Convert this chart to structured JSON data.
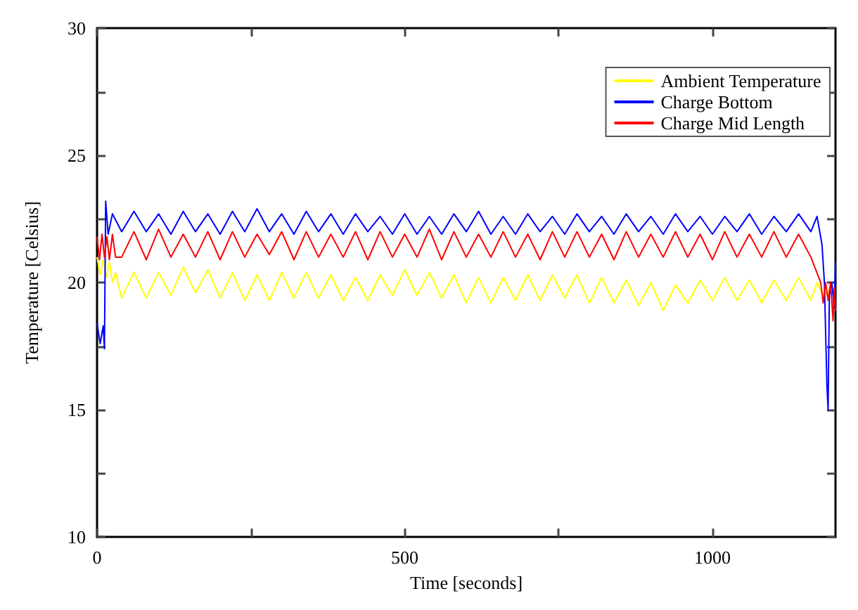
{
  "chart_data": {
    "type": "line",
    "xlabel": "Time [seconds]",
    "ylabel": "Temperature [Celsius]",
    "xlim": [
      0,
      1200
    ],
    "xticks": [
      0,
      {
        "value": 250,
        "label": null
      },
      500,
      {
        "value": 750,
        "label": null
      },
      1000
    ],
    "ylim": [
      10,
      30
    ],
    "yticks": [
      10,
      {
        "value": 12.5,
        "label": null
      },
      15,
      {
        "value": 17.5,
        "label": null
      },
      20,
      {
        "value": 22.5,
        "label": null
      },
      25,
      {
        "value": 27.5,
        "label": null
      },
      30
    ],
    "grid": false,
    "legend": "top right",
    "marker": "none",
    "line_style": "solid",
    "series": [
      {
        "name": "Ambient Temperature",
        "color": "#ffff00",
        "x": [
          0,
          5,
          10,
          15,
          20,
          25,
          30,
          40,
          60,
          80,
          100,
          120,
          140,
          160,
          180,
          200,
          220,
          240,
          260,
          280,
          300,
          320,
          340,
          360,
          380,
          400,
          420,
          440,
          460,
          480,
          500,
          520,
          540,
          560,
          580,
          600,
          620,
          640,
          660,
          680,
          700,
          720,
          740,
          760,
          780,
          800,
          820,
          840,
          860,
          880,
          900,
          920,
          940,
          960,
          980,
          1000,
          1020,
          1040,
          1060,
          1080,
          1100,
          1120,
          1140,
          1160,
          1170,
          1180,
          1190
        ],
        "values": [
          21.0,
          20.3,
          20.9,
          20.2,
          20.8,
          20.0,
          20.4,
          19.4,
          20.4,
          19.4,
          20.4,
          19.5,
          20.6,
          19.6,
          20.5,
          19.4,
          20.4,
          19.3,
          20.3,
          19.3,
          20.4,
          19.4,
          20.4,
          19.4,
          20.3,
          19.3,
          20.2,
          19.3,
          20.3,
          19.5,
          20.5,
          19.5,
          20.4,
          19.4,
          20.3,
          19.2,
          20.2,
          19.2,
          20.2,
          19.3,
          20.3,
          19.3,
          20.3,
          19.4,
          20.3,
          19.2,
          20.2,
          19.2,
          20.1,
          19.1,
          20.0,
          18.9,
          19.9,
          19.2,
          20.1,
          19.3,
          20.2,
          19.3,
          20.1,
          19.2,
          20.1,
          19.3,
          20.2,
          19.3,
          20.0,
          19.5,
          19.7
        ]
      },
      {
        "name": "Charge Bottom",
        "color": "#0000ff",
        "x": [
          0,
          5,
          10,
          12,
          14,
          18,
          25,
          40,
          60,
          80,
          100,
          120,
          140,
          160,
          180,
          200,
          220,
          240,
          260,
          280,
          300,
          320,
          340,
          360,
          380,
          400,
          420,
          440,
          460,
          480,
          500,
          520,
          540,
          560,
          580,
          600,
          620,
          640,
          660,
          680,
          700,
          720,
          740,
          760,
          780,
          800,
          820,
          840,
          860,
          880,
          900,
          920,
          940,
          960,
          980,
          1000,
          1020,
          1040,
          1060,
          1080,
          1100,
          1120,
          1140,
          1160,
          1170,
          1178,
          1182,
          1186,
          1188,
          1190,
          1194,
          1198,
          1200
        ],
        "values": [
          18.4,
          17.6,
          18.3,
          17.4,
          23.2,
          21.9,
          22.7,
          22.0,
          22.8,
          22.0,
          22.7,
          21.9,
          22.8,
          22.0,
          22.7,
          21.9,
          22.8,
          22.0,
          22.9,
          22.0,
          22.7,
          21.9,
          22.8,
          22.0,
          22.7,
          21.9,
          22.7,
          22.0,
          22.6,
          21.9,
          22.7,
          21.9,
          22.6,
          21.9,
          22.7,
          22.0,
          22.8,
          21.9,
          22.6,
          21.9,
          22.7,
          22.0,
          22.6,
          21.9,
          22.7,
          22.0,
          22.6,
          21.9,
          22.7,
          22.0,
          22.6,
          21.9,
          22.7,
          22.0,
          22.6,
          21.9,
          22.6,
          22.0,
          22.7,
          21.9,
          22.6,
          22.0,
          22.7,
          22.0,
          22.6,
          21.5,
          20.0,
          16.0,
          15.0,
          19.5,
          20.0,
          19.0,
          20.8
        ]
      },
      {
        "name": "Charge Mid Length",
        "color": "#ff0000",
        "x": [
          0,
          4,
          8,
          12,
          16,
          20,
          25,
          30,
          40,
          60,
          80,
          100,
          120,
          140,
          160,
          180,
          200,
          220,
          240,
          260,
          280,
          300,
          320,
          340,
          360,
          380,
          400,
          420,
          440,
          460,
          480,
          500,
          520,
          540,
          560,
          580,
          600,
          620,
          640,
          660,
          680,
          700,
          720,
          740,
          760,
          780,
          800,
          820,
          840,
          860,
          880,
          900,
          920,
          940,
          960,
          980,
          1000,
          1020,
          1040,
          1060,
          1080,
          1100,
          1120,
          1140,
          1160,
          1176,
          1180,
          1184,
          1188,
          1192,
          1196,
          1198,
          1200
        ],
        "values": [
          21.8,
          20.9,
          21.9,
          21.0,
          21.8,
          20.9,
          21.9,
          21.0,
          21.0,
          22.0,
          20.9,
          22.1,
          21.0,
          21.9,
          21.0,
          22.0,
          20.9,
          22.0,
          21.0,
          21.9,
          21.1,
          22.0,
          20.9,
          22.0,
          21.0,
          21.9,
          21.0,
          22.0,
          20.9,
          22.0,
          21.0,
          21.9,
          21.0,
          22.1,
          20.9,
          22.0,
          21.0,
          21.9,
          21.0,
          22.0,
          21.0,
          21.9,
          20.9,
          22.0,
          21.0,
          22.0,
          21.0,
          21.9,
          20.9,
          22.0,
          21.0,
          21.9,
          21.0,
          22.0,
          21.0,
          21.9,
          20.9,
          22.0,
          21.0,
          21.9,
          21.0,
          22.0,
          21.0,
          21.9,
          21.0,
          20.0,
          19.2,
          20.0,
          19.3,
          20.0,
          18.5,
          19.8,
          18.9
        ]
      }
    ]
  }
}
